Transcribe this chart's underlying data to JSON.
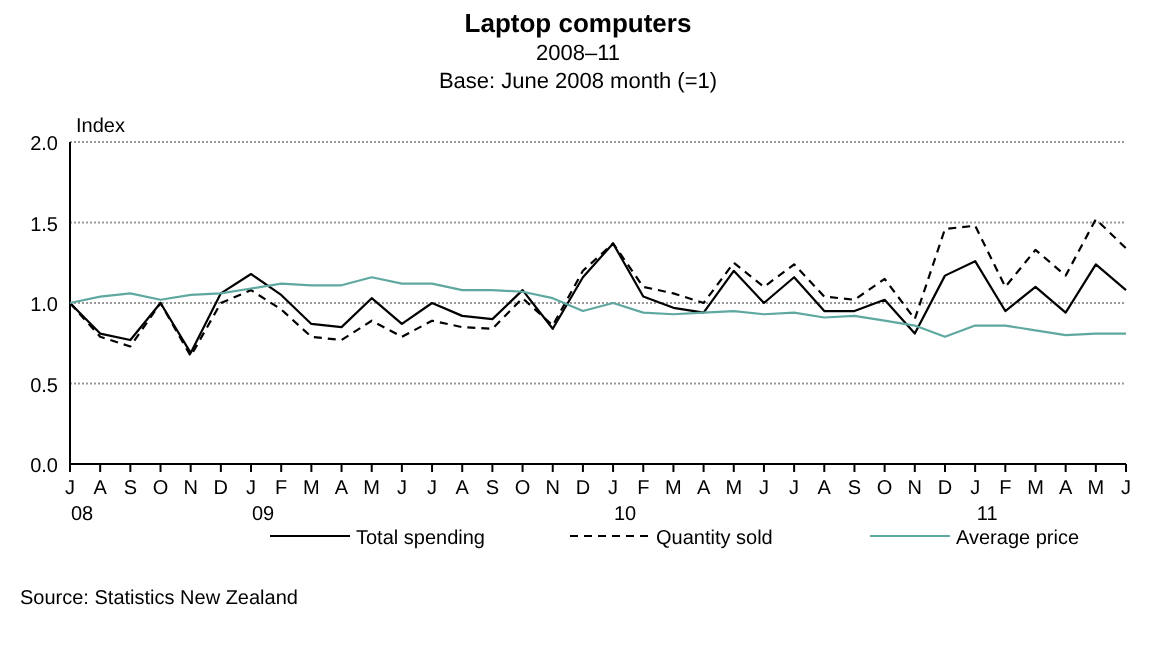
{
  "chart_data": {
    "type": "line",
    "title": "Laptop computers",
    "subtitle": "2008–11\nBase: June 2008 month (=1)",
    "ylabel": "Index",
    "categories": [
      "J\n08",
      "A",
      "S",
      "O",
      "N",
      "D",
      "J\n09",
      "F",
      "M",
      "A",
      "M",
      "J",
      "J",
      "A",
      "S",
      "O",
      "N",
      "D",
      "J\n10",
      "F",
      "M",
      "A",
      "M",
      "J",
      "J",
      "A",
      "S",
      "O",
      "N",
      "D",
      "J\n11",
      "F",
      "M",
      "A",
      "M",
      "J"
    ],
    "series": [
      {
        "name": "Total spending",
        "color": "#000000",
        "line_style": "solid",
        "values": [
          1.0,
          0.81,
          0.77,
          1.0,
          0.69,
          1.06,
          1.18,
          1.05,
          0.87,
          0.85,
          1.03,
          0.87,
          1.0,
          0.92,
          0.9,
          1.08,
          0.84,
          1.16,
          1.37,
          1.04,
          0.97,
          0.94,
          1.2,
          1.0,
          1.16,
          0.95,
          0.95,
          1.02,
          0.81,
          1.17,
          1.26,
          0.95,
          1.1,
          0.94,
          1.24,
          1.08
        ]
      },
      {
        "name": "Quantity sold",
        "color": "#000000",
        "line_style": "dashed",
        "values": [
          1.0,
          0.79,
          0.73,
          1.0,
          0.67,
          1.0,
          1.08,
          0.96,
          0.79,
          0.77,
          0.89,
          0.79,
          0.89,
          0.85,
          0.84,
          1.03,
          0.86,
          1.2,
          1.37,
          1.1,
          1.06,
          1.0,
          1.25,
          1.1,
          1.24,
          1.04,
          1.02,
          1.15,
          0.9,
          1.46,
          1.48,
          1.1,
          1.33,
          1.17,
          1.52,
          1.34
        ]
      },
      {
        "name": "Average price",
        "color": "#5fa8a0",
        "line_style": "solid",
        "values": [
          1.0,
          1.04,
          1.06,
          1.02,
          1.05,
          1.06,
          1.09,
          1.12,
          1.11,
          1.11,
          1.16,
          1.12,
          1.12,
          1.08,
          1.08,
          1.07,
          1.03,
          0.95,
          1.0,
          0.94,
          0.93,
          0.94,
          0.95,
          0.93,
          0.94,
          0.91,
          0.92,
          0.89,
          0.86,
          0.79,
          0.86,
          0.86,
          0.83,
          0.8,
          0.81,
          0.81
        ]
      }
    ],
    "ylim": [
      0,
      2
    ],
    "yticks": [
      {
        "value": 0,
        "label": "0.0"
      },
      {
        "value": 0.5,
        "label": "0.5"
      },
      {
        "value": 1,
        "label": "1.0"
      },
      {
        "value": 1.5,
        "label": "1.5"
      },
      {
        "value": 2,
        "label": "2.0"
      }
    ],
    "grid": "y",
    "legend": "bottom",
    "marker": "none",
    "annotations": [
      "Source: Statistics New Zealand"
    ]
  }
}
